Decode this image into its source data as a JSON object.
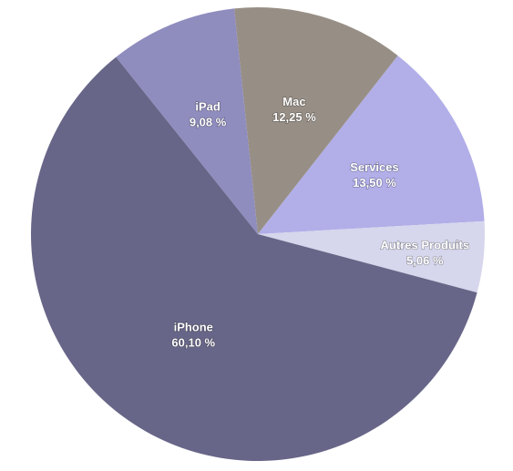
{
  "chart_data": {
    "type": "pie",
    "title": "",
    "slices": [
      {
        "label": "Mac",
        "value": 12.25,
        "value_text": "12,25 %",
        "color": "#978f86"
      },
      {
        "label": "Services",
        "value": 13.5,
        "value_text": "13,50 %",
        "color": "#b1aee8"
      },
      {
        "label": "Autres Produits",
        "value": 5.06,
        "value_text": "5,06 %",
        "color": "#d6d6ec"
      },
      {
        "label": "iPhone",
        "value": 60.1,
        "value_text": "60,10 %",
        "color": "#676688"
      },
      {
        "label": "iPad",
        "value": 9.08,
        "value_text": "9,08 %",
        "color": "#8f8cbe"
      }
    ],
    "legend": "none"
  }
}
